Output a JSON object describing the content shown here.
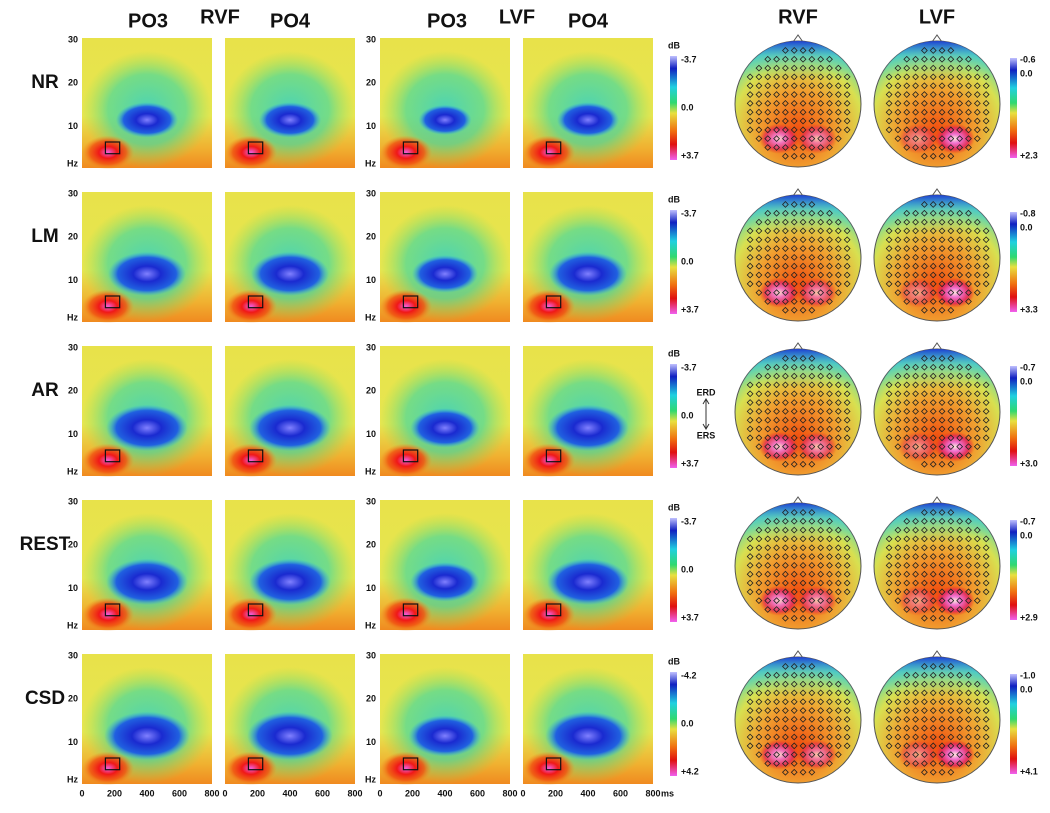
{
  "header": {
    "tf_groups": [
      {
        "label": "RVF",
        "channels": [
          "PO3",
          "PO4"
        ]
      },
      {
        "label": "LVF",
        "channels": [
          "PO3",
          "PO4"
        ]
      }
    ],
    "topo_columns": [
      "RVF",
      "LVF"
    ]
  },
  "axes": {
    "y_ticks": [
      "30",
      "20",
      "10"
    ],
    "y_unit": "Hz",
    "x_ticks": [
      "0",
      "200",
      "400",
      "600",
      "800"
    ],
    "x_unit": "ms",
    "colorbar_unit": "dB"
  },
  "rows": [
    {
      "label": "NR",
      "tf_scale": [
        "-3.7",
        "0.0",
        "+3.7"
      ],
      "topo_scale": [
        "-0.6",
        "0.0",
        "+2.3"
      ]
    },
    {
      "label": "LM",
      "tf_scale": [
        "-3.7",
        "0.0",
        "+3.7"
      ],
      "topo_scale": [
        "-0.8",
        "0.0",
        "+3.3"
      ]
    },
    {
      "label": "AR",
      "tf_scale": [
        "-3.7",
        "0.0",
        "+3.7"
      ],
      "topo_scale": [
        "-0.7",
        "0.0",
        "+3.0"
      ]
    },
    {
      "label": "REST",
      "tf_scale": [
        "-3.7",
        "0.0",
        "+3.7"
      ],
      "topo_scale": [
        "-0.7",
        "0.0",
        "+2.9"
      ]
    },
    {
      "label": "CSD",
      "tf_scale": [
        "-4.2",
        "0.0",
        "+4.2"
      ],
      "topo_scale": [
        "-1.0",
        "0.0",
        "+4.1"
      ]
    }
  ],
  "annotations": {
    "erd": "ERD",
    "ers": "ERS"
  }
}
